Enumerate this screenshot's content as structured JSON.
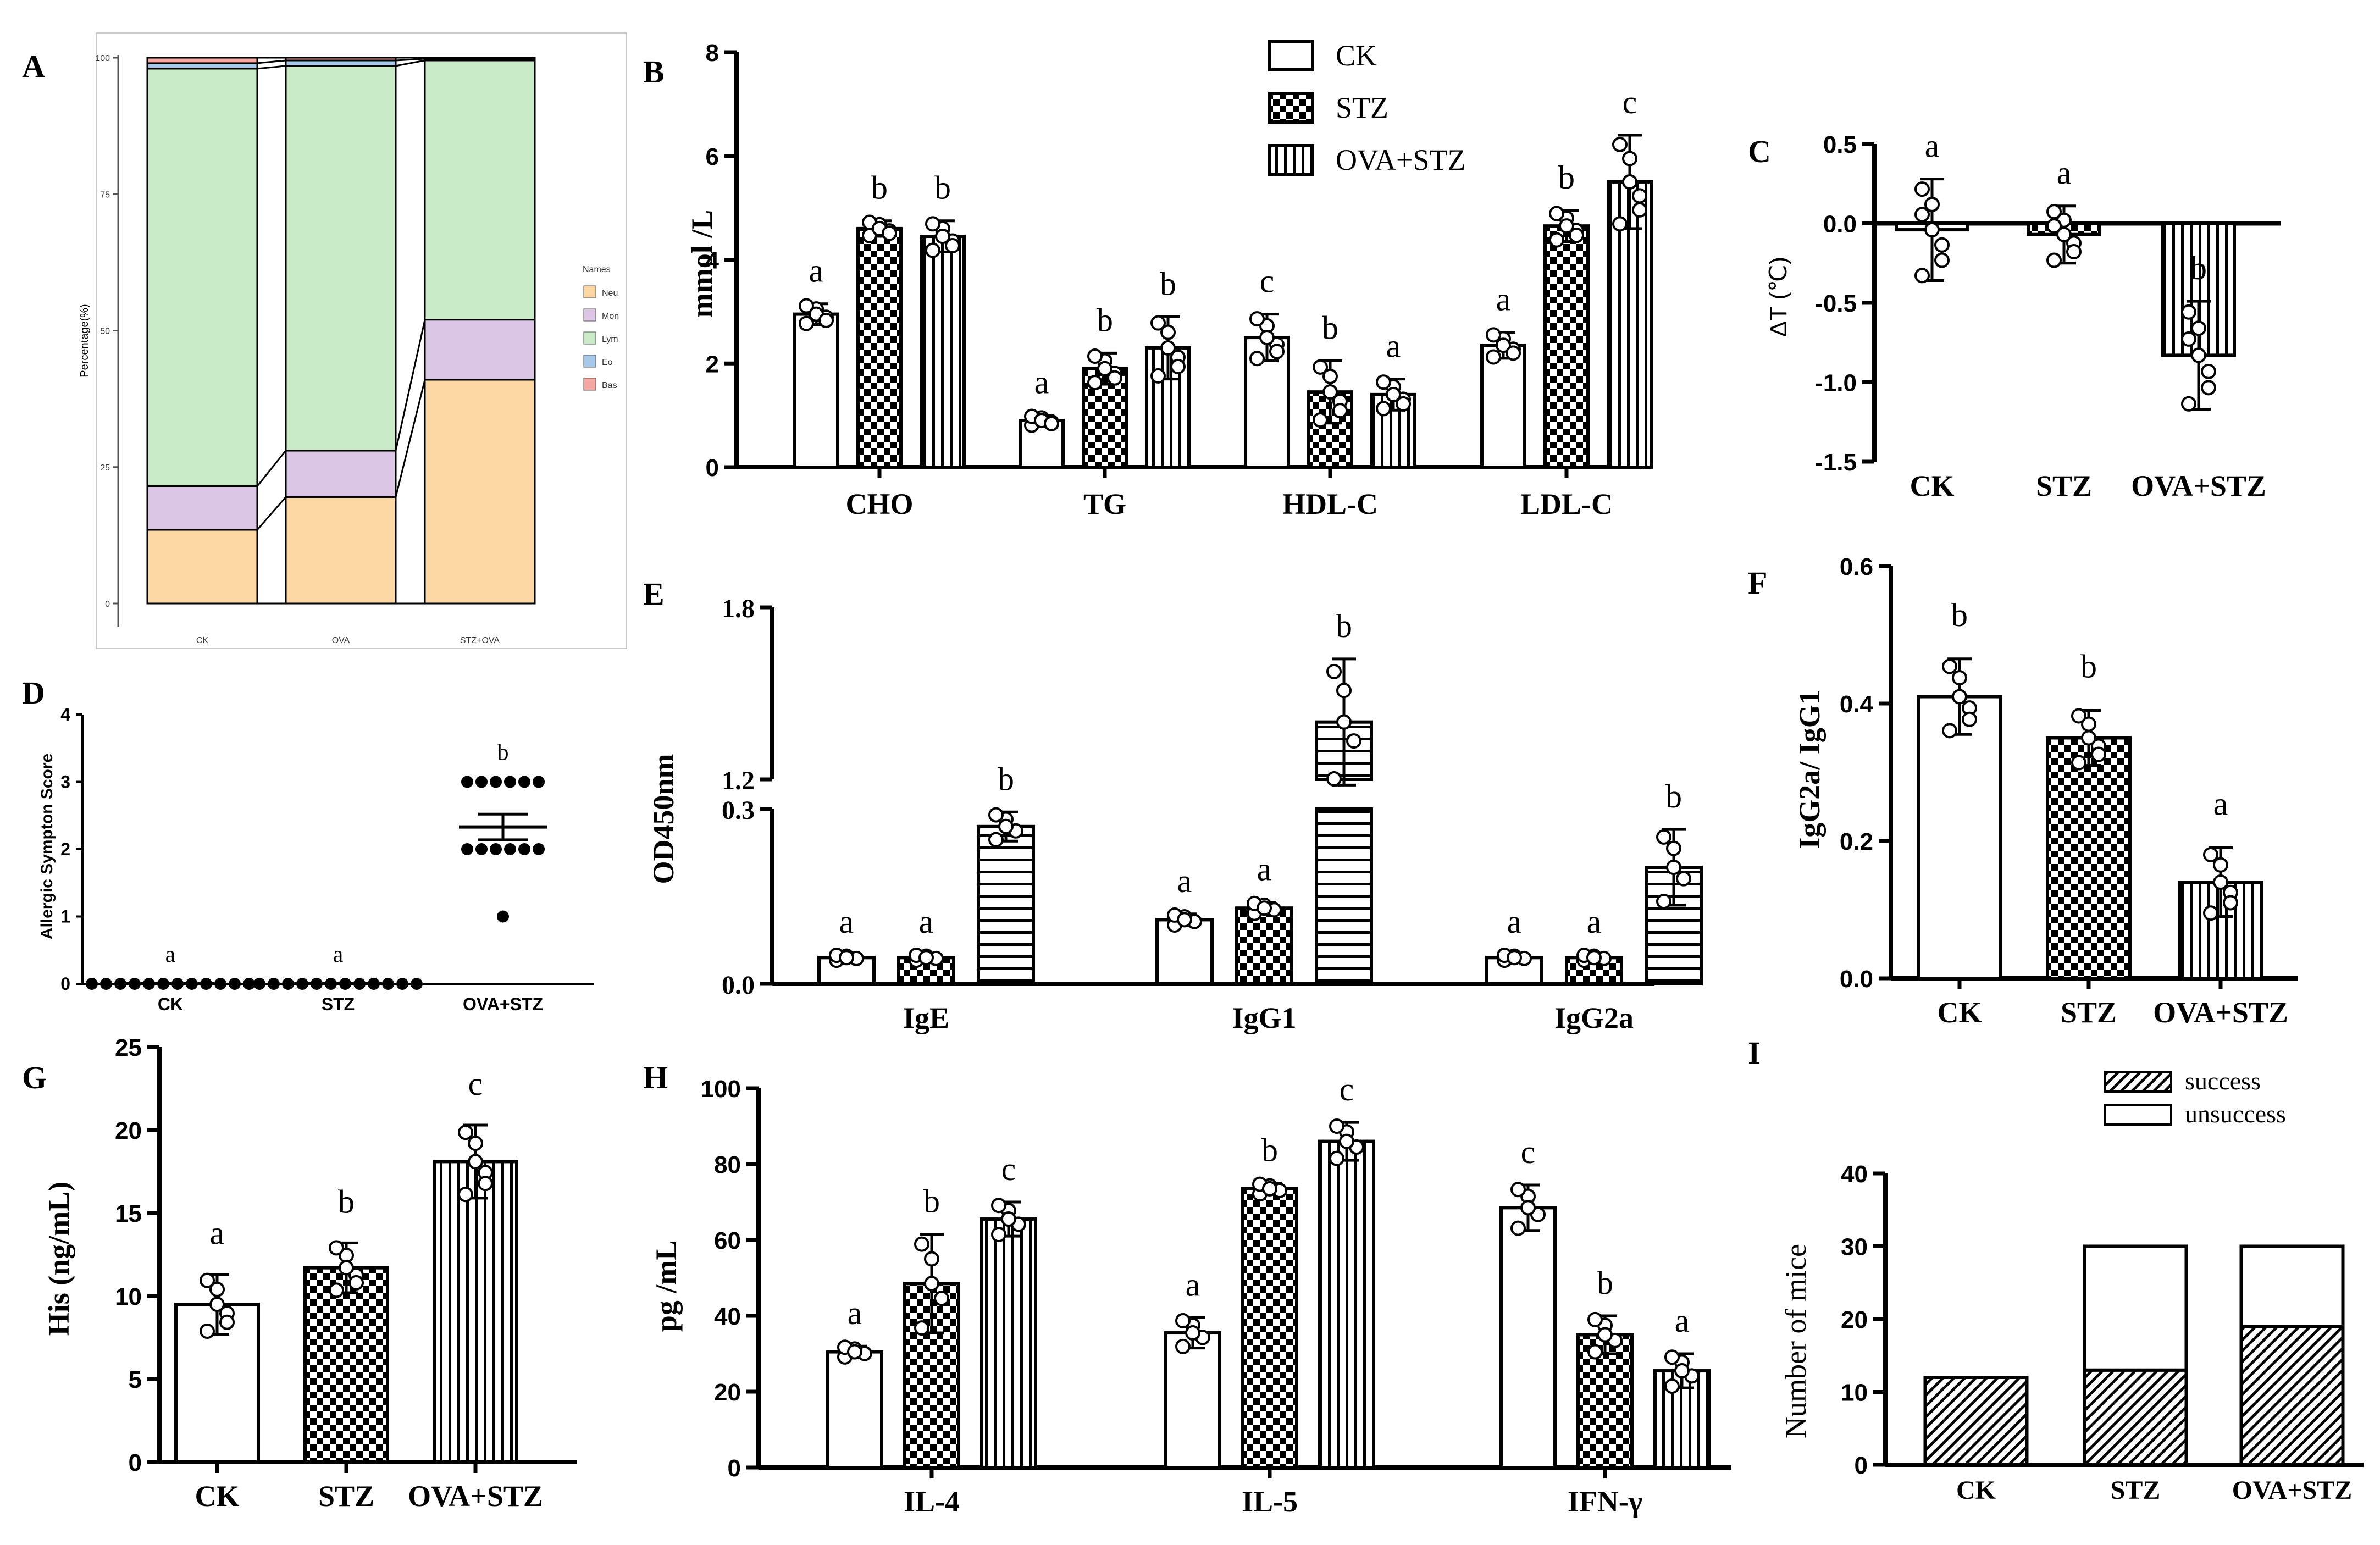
{
  "chart_data": [
    {
      "panel": "A",
      "type": "bar",
      "stacked": true,
      "ylabel": "Percentage(%)",
      "yticks": [
        "0",
        "25",
        "50",
        "75",
        "100"
      ],
      "categories": [
        "CK",
        "OVA",
        "STZ+OVA"
      ],
      "legend_title": "Names",
      "series": [
        {
          "name": "Neu",
          "color": "#fdd8a4",
          "values": [
            13.5,
            19.5,
            41
          ]
        },
        {
          "name": "Mon",
          "color": "#dcc6e6",
          "values": [
            8,
            8.5,
            11
          ]
        },
        {
          "name": "Lym",
          "color": "#c8eac6",
          "values": [
            76.5,
            70.5,
            47.5
          ]
        },
        {
          "name": "Eo",
          "color": "#a7c8e8",
          "values": [
            1,
            1,
            0.3
          ]
        },
        {
          "name": "Bas",
          "color": "#f4a7a2",
          "values": [
            1,
            0.5,
            0.2
          ]
        }
      ]
    },
    {
      "panel": "B",
      "type": "bar",
      "ylabel": "mmol /L",
      "ylim": [
        0,
        8
      ],
      "yticks": [
        "0",
        "2",
        "4",
        "6",
        "8"
      ],
      "categories": [
        "CHO",
        "TG",
        "HDL-C",
        "LDL-C"
      ],
      "legend": [
        "CK",
        "STZ",
        "OVA+STZ"
      ],
      "series": [
        {
          "name": "CK",
          "values": [
            2.95,
            0.9,
            2.5,
            2.35
          ],
          "errors": [
            0.2,
            0.1,
            0.45,
            0.25
          ],
          "letters": [
            "a",
            "a",
            "c",
            "a"
          ]
        },
        {
          "name": "STZ",
          "values": [
            4.6,
            1.9,
            1.45,
            4.65
          ],
          "errors": [
            0.15,
            0.3,
            0.6,
            0.3
          ],
          "letters": [
            "b",
            "b",
            "b",
            "b"
          ]
        },
        {
          "name": "OVA+STZ",
          "values": [
            4.45,
            2.3,
            1.4,
            5.5
          ],
          "errors": [
            0.3,
            0.6,
            0.3,
            0.9
          ],
          "letters": [
            "b",
            "b",
            "a",
            "c"
          ]
        }
      ]
    },
    {
      "panel": "C",
      "type": "bar",
      "ylabel": "ΔT (℃)",
      "ylim": [
        -1.5,
        0.5
      ],
      "yticks": [
        "0.5",
        "0.0",
        "-0.5",
        "-1.0",
        "-1.5"
      ],
      "categories": [
        "CK",
        "STZ",
        "OVA+STZ"
      ],
      "values": [
        -0.04,
        -0.07,
        -0.83
      ],
      "errors": [
        0.32,
        0.18,
        0.34
      ],
      "letters": [
        "a",
        "a",
        "b"
      ]
    },
    {
      "panel": "D",
      "type": "scatter",
      "ylabel": "Allergic Sympton Score",
      "ylim": [
        0,
        4
      ],
      "yticks": [
        "0",
        "1",
        "2",
        "3",
        "4"
      ],
      "categories": [
        "CK",
        "STZ",
        "OVA+STZ"
      ],
      "means": [
        0,
        0,
        2.33
      ],
      "sem": [
        0,
        0,
        0.19
      ],
      "points": [
        [
          0,
          0,
          0,
          0,
          0,
          0,
          0,
          0,
          0,
          0,
          0,
          0
        ],
        [
          0,
          0,
          0,
          0,
          0,
          0,
          0,
          0,
          0,
          0,
          0,
          0
        ],
        [
          3,
          3,
          3,
          3,
          3,
          3,
          2,
          2,
          2,
          2,
          2,
          2,
          1
        ]
      ],
      "letters": [
        "a",
        "a",
        "b"
      ]
    },
    {
      "panel": "E",
      "type": "bar",
      "ylabel": "OD450nm",
      "yticks": [
        "0.0",
        "0.3",
        "1.2",
        "1.8"
      ],
      "categories": [
        "IgE",
        "IgG1",
        "IgG2a"
      ],
      "series": [
        {
          "name": "CK",
          "values": [
            0.045,
            0.11,
            0.045
          ],
          "errors": [
            0.005,
            0.01,
            0.005
          ],
          "letters": [
            "a",
            "a",
            "a"
          ]
        },
        {
          "name": "STZ",
          "values": [
            0.045,
            0.13,
            0.045
          ],
          "errors": [
            0.005,
            0.01,
            0.005
          ],
          "letters": [
            "a",
            "a",
            "a"
          ]
        },
        {
          "name": "OVA+STZ",
          "values": [
            0.27,
            1.4,
            0.2
          ],
          "errors": [
            0.025,
            0.22,
            0.065
          ],
          "letters": [
            "b",
            "b",
            "b"
          ]
        }
      ]
    },
    {
      "panel": "F",
      "type": "bar",
      "ylabel": "IgG2a/ IgG1",
      "ylim": [
        0,
        0.6
      ],
      "yticks": [
        "0.0",
        "0.2",
        "0.4",
        "0.6"
      ],
      "categories": [
        "CK",
        "STZ",
        "OVA+STZ"
      ],
      "values": [
        0.41,
        0.35,
        0.14
      ],
      "errors": [
        0.055,
        0.04,
        0.05
      ],
      "letters": [
        "b",
        "b",
        "a"
      ]
    },
    {
      "panel": "G",
      "type": "bar",
      "ylabel": "His (ng/mL)",
      "ylim": [
        0,
        25
      ],
      "yticks": [
        "0",
        "5",
        "10",
        "15",
        "20",
        "25"
      ],
      "categories": [
        "CK",
        "STZ",
        "OVA+STZ"
      ],
      "values": [
        9.5,
        11.7,
        18.1
      ],
      "errors": [
        1.8,
        1.5,
        2.2
      ],
      "letters": [
        "a",
        "b",
        "c"
      ]
    },
    {
      "panel": "H",
      "type": "bar",
      "ylabel": "pg /mL",
      "ylim": [
        0,
        100
      ],
      "yticks": [
        "0",
        "20",
        "40",
        "60",
        "80",
        "100"
      ],
      "categories": [
        "IL-4",
        "IL-5",
        "IFN-γ"
      ],
      "series": [
        {
          "name": "CK",
          "values": [
            30.5,
            35.5,
            68.5
          ],
          "errors": [
            1.5,
            4,
            6
          ],
          "letters": [
            "a",
            "a",
            "c"
          ]
        },
        {
          "name": "STZ",
          "values": [
            48.5,
            73.5,
            35
          ],
          "errors": [
            13,
            1.5,
            5
          ],
          "letters": [
            "b",
            "b",
            "b"
          ]
        },
        {
          "name": "OVA+STZ",
          "values": [
            65.5,
            86,
            25.5
          ],
          "errors": [
            4.5,
            5,
            4.5
          ],
          "letters": [
            "c",
            "c",
            "a"
          ]
        }
      ]
    },
    {
      "panel": "I",
      "type": "bar",
      "stacked": true,
      "ylabel": "Number of mice",
      "ylim": [
        0,
        40
      ],
      "yticks": [
        "0",
        "10",
        "20",
        "30",
        "40"
      ],
      "categories": [
        "CK",
        "STZ",
        "OVA+STZ"
      ],
      "legend": [
        "success",
        "unsuccess"
      ],
      "series": [
        {
          "name": "success",
          "values": [
            12,
            13,
            19
          ]
        },
        {
          "name": "unsuccess",
          "values": [
            0,
            17,
            11
          ]
        }
      ]
    }
  ]
}
